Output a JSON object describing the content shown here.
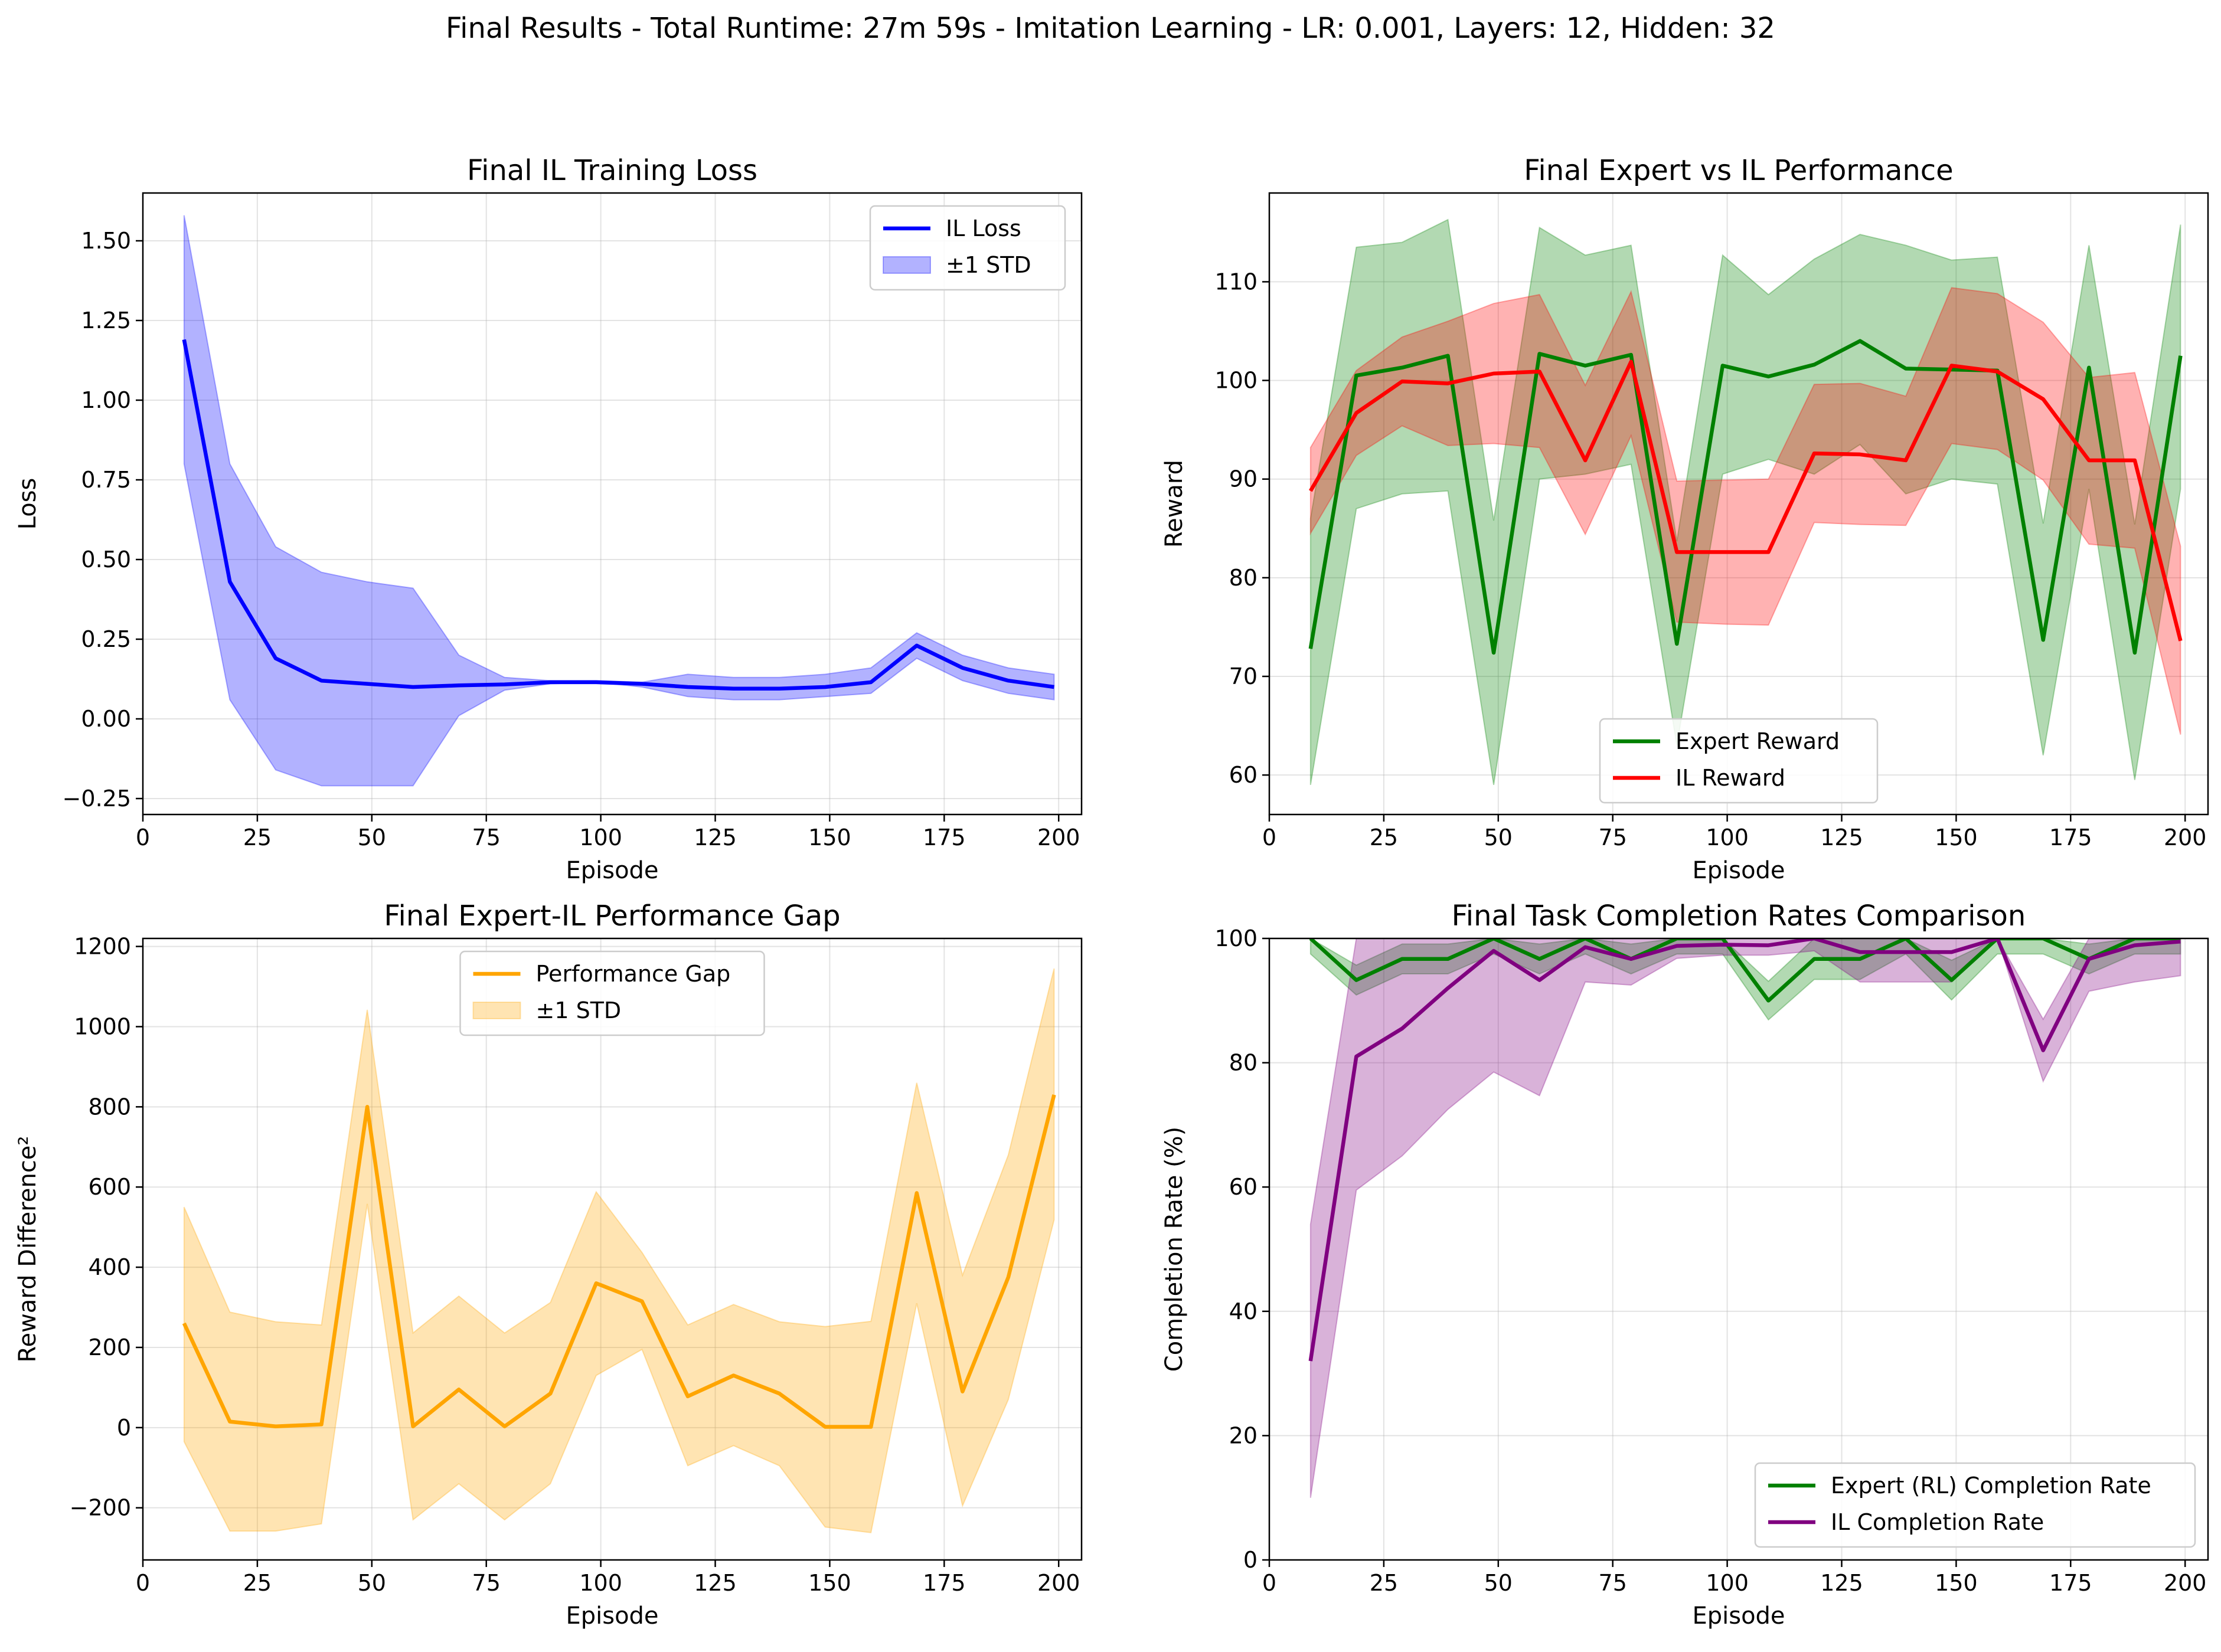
{
  "figure": {
    "title": "Final Results - Total Runtime: 27m 59s - Imitation Learning - LR: 0.001, Layers: 12, Hidden: 32"
  },
  "chart_data": [
    {
      "type": "line",
      "title": "Final IL Training Loss",
      "xlabel": "Episode",
      "ylabel": "Loss",
      "xlim": [
        0,
        205
      ],
      "ylim": [
        -0.3,
        1.65
      ],
      "xticks": [
        0,
        25,
        50,
        75,
        100,
        125,
        150,
        175,
        200
      ],
      "yticks": [
        -0.25,
        0.0,
        0.25,
        0.5,
        0.75,
        1.0,
        1.25,
        1.5
      ],
      "ytick_labels": [
        "−0.25",
        "0.00",
        "0.25",
        "0.50",
        "0.75",
        "1.00",
        "1.25",
        "1.50"
      ],
      "grid": true,
      "legend_position": "upper right",
      "x": [
        9,
        19,
        29,
        39,
        49,
        59,
        69,
        79,
        89,
        99,
        109,
        119,
        129,
        139,
        149,
        159,
        169,
        179,
        189,
        199
      ],
      "series": [
        {
          "name": "IL Loss",
          "band_name": "±1 STD",
          "color": "#0000ff",
          "band_color": "#0000ff",
          "values": [
            1.19,
            0.43,
            0.19,
            0.12,
            0.11,
            0.1,
            0.105,
            0.108,
            0.115,
            0.115,
            0.11,
            0.1,
            0.095,
            0.095,
            0.1,
            0.115,
            0.23,
            0.16,
            0.12,
            0.1
          ],
          "lower": [
            0.8,
            0.06,
            -0.16,
            -0.21,
            -0.21,
            -0.21,
            0.01,
            0.09,
            0.11,
            0.115,
            0.1,
            0.07,
            0.06,
            0.06,
            0.07,
            0.08,
            0.19,
            0.12,
            0.08,
            0.06
          ],
          "upper": [
            1.58,
            0.8,
            0.54,
            0.46,
            0.43,
            0.41,
            0.2,
            0.13,
            0.12,
            0.12,
            0.115,
            0.14,
            0.13,
            0.13,
            0.14,
            0.16,
            0.27,
            0.2,
            0.16,
            0.14
          ]
        }
      ]
    },
    {
      "type": "line",
      "title": "Final Expert vs IL Performance",
      "xlabel": "Episode",
      "ylabel": "Reward",
      "xlim": [
        0,
        205
      ],
      "ylim": [
        56,
        119
      ],
      "xticks": [
        0,
        25,
        50,
        75,
        100,
        125,
        150,
        175,
        200
      ],
      "yticks": [
        60,
        70,
        80,
        90,
        100,
        110
      ],
      "ytick_labels": [
        "60",
        "70",
        "80",
        "90",
        "100",
        "110"
      ],
      "grid": true,
      "legend_position": "lower center",
      "x": [
        9,
        19,
        29,
        39,
        49,
        59,
        69,
        79,
        89,
        99,
        109,
        119,
        129,
        139,
        149,
        159,
        169,
        179,
        189,
        199
      ],
      "series": [
        {
          "name": "Expert Reward",
          "color": "#008000",
          "band_color": "#008000",
          "values": [
            72.8,
            100.5,
            101.3,
            102.5,
            72.4,
            102.7,
            101.5,
            102.6,
            73.3,
            101.5,
            100.4,
            101.6,
            104.0,
            101.2,
            101.1,
            101.0,
            73.7,
            101.3,
            72.4,
            102.5
          ],
          "lower": [
            59,
            87,
            88.5,
            88.8,
            59,
            90,
            90.5,
            91.5,
            63,
            90.5,
            92,
            90.5,
            93.5,
            88.5,
            90,
            89.5,
            62,
            89,
            59.5,
            89
          ],
          "upper": [
            86,
            113.5,
            114,
            116.3,
            85.8,
            115.5,
            112.7,
            113.7,
            83.7,
            112.7,
            108.7,
            112.3,
            114.8,
            113.7,
            112.2,
            112.5,
            85.5,
            113.7,
            85.4,
            115.8
          ]
        },
        {
          "name": "IL Reward",
          "color": "#ff0000",
          "band_color": "#ff0000",
          "values": [
            88.8,
            96.7,
            99.9,
            99.7,
            100.7,
            100.9,
            91.9,
            101.9,
            82.6,
            82.6,
            82.6,
            92.6,
            92.5,
            91.9,
            101.5,
            100.9,
            98.1,
            91.9,
            91.9,
            73.6
          ],
          "lower": [
            84.5,
            92.4,
            95.4,
            93.4,
            93.6,
            93.2,
            84.4,
            94.4,
            75.5,
            75.3,
            75.2,
            85.6,
            85.4,
            85.3,
            93.6,
            93.0,
            89.9,
            83.4,
            83.0,
            64.1
          ],
          "upper": [
            93.2,
            101.0,
            104.4,
            106.0,
            107.8,
            108.7,
            99.5,
            109.0,
            89.8,
            89.9,
            90.0,
            99.6,
            99.7,
            98.4,
            109.4,
            108.8,
            105.9,
            100.3,
            100.8,
            83.2
          ]
        }
      ]
    },
    {
      "type": "line",
      "title": "Final Expert-IL Performance Gap",
      "xlabel": "Episode",
      "ylabel": "Reward Difference²",
      "xlim": [
        0,
        205
      ],
      "ylim": [
        -330,
        1220
      ],
      "xticks": [
        0,
        25,
        50,
        75,
        100,
        125,
        150,
        175,
        200
      ],
      "yticks": [
        -200,
        0,
        200,
        400,
        600,
        800,
        1000,
        1200
      ],
      "ytick_labels": [
        "−200",
        "0",
        "200",
        "400",
        "600",
        "800",
        "1000",
        "1200"
      ],
      "grid": true,
      "legend_position": "upper center",
      "x": [
        9,
        19,
        29,
        39,
        49,
        59,
        69,
        79,
        89,
        99,
        109,
        119,
        129,
        139,
        149,
        159,
        169,
        179,
        189,
        199
      ],
      "series": [
        {
          "name": "Performance Gap",
          "band_name": "±1 STD",
          "color": "#ffa500",
          "band_color": "#ffa500",
          "values": [
            260,
            15,
            3,
            8,
            800,
            3,
            95,
            3,
            85,
            360,
            315,
            78,
            130,
            85,
            2,
            2,
            585,
            90,
            375,
            830
          ],
          "lower": [
            -35,
            -258,
            -258,
            -240,
            558,
            -230,
            -140,
            -230,
            -140,
            130,
            195,
            -95,
            -45,
            -95,
            -248,
            -262,
            310,
            -195,
            70,
            518
          ],
          "upper": [
            550,
            288,
            264,
            256,
            1042,
            236,
            328,
            236,
            312,
            588,
            437,
            256,
            307,
            264,
            252,
            265,
            860,
            380,
            680,
            1145
          ]
        }
      ]
    },
    {
      "type": "line",
      "title": "Final Task Completion Rates Comparison",
      "xlabel": "Episode",
      "ylabel": "Completion Rate (%)",
      "xlim": [
        0,
        205
      ],
      "ylim": [
        0,
        100
      ],
      "xticks": [
        0,
        25,
        50,
        75,
        100,
        125,
        150,
        175,
        200
      ],
      "yticks": [
        0,
        20,
        40,
        60,
        80,
        100
      ],
      "ytick_labels": [
        "0",
        "20",
        "40",
        "60",
        "80",
        "100"
      ],
      "grid": true,
      "legend_position": "lower right",
      "x": [
        9,
        19,
        29,
        39,
        49,
        59,
        69,
        79,
        89,
        99,
        109,
        119,
        129,
        139,
        149,
        159,
        169,
        179,
        189,
        199
      ],
      "series": [
        {
          "name": "Expert (RL) Completion Rate",
          "color": "#008000",
          "band_color": "#008000",
          "values": [
            100,
            93.3,
            96.7,
            96.7,
            100,
            96.7,
            100,
            96.7,
            100,
            100,
            90,
            96.7,
            96.7,
            100,
            93.3,
            100,
            100,
            96.7,
            100,
            100
          ],
          "lower": [
            97.5,
            90.9,
            94.3,
            94.3,
            97.5,
            94.3,
            97.5,
            94.3,
            97.5,
            97.5,
            86.9,
            93.4,
            93.4,
            97.5,
            90.1,
            97.5,
            97.5,
            94.3,
            97.5,
            97.5
          ],
          "upper": [
            100,
            95.7,
            99.1,
            99.1,
            100,
            99.1,
            100,
            99.1,
            100,
            100,
            93.1,
            100,
            100,
            100,
            96.5,
            100,
            100,
            99.1,
            100,
            100
          ]
        },
        {
          "name": "IL Completion Rate",
          "color": "#800080",
          "band_color": "#800080",
          "values": [
            32,
            81,
            85.5,
            92,
            98,
            93.3,
            98.6,
            96.7,
            98.8,
            99,
            98.9,
            100,
            97.8,
            97.8,
            97.8,
            100,
            82,
            96.7,
            98.9,
            99.5
          ],
          "lower": [
            10,
            59.5,
            65,
            72.5,
            78.5,
            74.7,
            93,
            92.5,
            96.8,
            97.3,
            97.3,
            98,
            93,
            93,
            93,
            100,
            77,
            91.5,
            93,
            94
          ],
          "upper": [
            54,
            100,
            100,
            100,
            100,
            100,
            100,
            100,
            100,
            100,
            100,
            100,
            100,
            100,
            100,
            100,
            87,
            100,
            100,
            100
          ]
        }
      ]
    }
  ]
}
